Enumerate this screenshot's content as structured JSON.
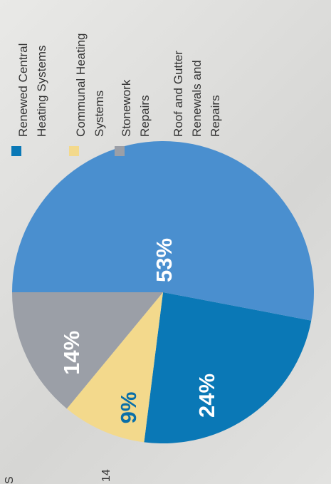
{
  "chart_data": {
    "type": "pie",
    "categories": [
      "Renewed Central Heating Systems",
      "Communal Heating Systems",
      "Stonework Repairs",
      "Roof and Gutter Renewals and Repairs"
    ],
    "values": [
      24,
      9,
      14,
      53
    ],
    "value_labels": [
      "24%",
      "9%",
      "14%",
      "53%"
    ],
    "colors": [
      "#0a78b6",
      "#f3d98c",
      "#9b9fa7",
      "#4a8fcf"
    ],
    "legend": "top"
  },
  "fragments": [
    "S",
    "14"
  ]
}
